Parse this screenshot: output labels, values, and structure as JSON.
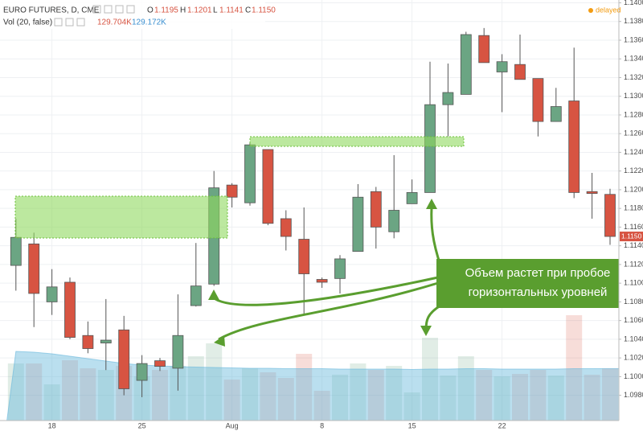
{
  "chart_data": {
    "type": "candlestick",
    "title": "EURO FUTURES, D, CME",
    "ohlc_letters": [
      "O",
      "H",
      "L",
      "C"
    ],
    "status": "delayed",
    "categories": [
      null,
      null,
      "18",
      null,
      null,
      null,
      null,
      "25",
      null,
      null,
      null,
      null,
      "Aug",
      null,
      null,
      null,
      null,
      "8",
      null,
      null,
      null,
      null,
      "15",
      null,
      null,
      null,
      null,
      "22",
      null,
      null,
      null,
      null,
      null,
      null
    ],
    "open": [
      1.1119,
      1.1142,
      1.108,
      1.1101,
      1.1044,
      1.1036,
      1.105,
      1.0996,
      1.1017,
      1.1009,
      1.1076,
      1.1099,
      1.1205,
      1.1186,
      1.1243,
      1.1169,
      1.1147,
      1.1104,
      1.1105,
      1.1134,
      1.1198,
      1.1155,
      1.1185,
      1.1197,
      1.1291,
      1.1302,
      1.1365,
      1.1326,
      1.1334,
      1.1319,
      1.1273,
      1.1295,
      1.1198,
      1.1195
    ],
    "high": [
      1.1169,
      1.1154,
      1.1115,
      1.1106,
      1.1059,
      1.1083,
      1.1065,
      1.1023,
      1.102,
      1.1088,
      1.1143,
      1.122,
      1.1207,
      1.1251,
      1.1243,
      1.1178,
      1.1181,
      1.1106,
      1.113,
      1.1206,
      1.1203,
      1.1237,
      1.1211,
      1.1337,
      1.1335,
      1.1369,
      1.1373,
      1.1345,
      1.1366,
      1.1319,
      1.1309,
      1.1352,
      1.1218,
      1.1201
    ],
    "low": [
      1.1092,
      1.1053,
      1.1066,
      1.104,
      1.1025,
      1.1007,
      1.098,
      1.0978,
      1.1006,
      1.0985,
      1.1075,
      1.1097,
      1.1181,
      1.1183,
      1.1162,
      1.1135,
      1.1066,
      1.1095,
      1.1089,
      1.1134,
      1.1137,
      1.1148,
      1.1185,
      1.1197,
      1.1257,
      1.1302,
      1.1336,
      1.1283,
      1.1318,
      1.1257,
      1.1273,
      1.1191,
      1.1169,
      1.1141
    ],
    "close": [
      1.1149,
      1.1089,
      1.1096,
      1.1042,
      1.103,
      1.1039,
      1.0987,
      1.1014,
      1.1011,
      1.1044,
      1.1097,
      1.1202,
      1.1192,
      1.1248,
      1.1164,
      1.115,
      1.111,
      1.1101,
      1.1126,
      1.1192,
      1.116,
      1.1178,
      1.1197,
      1.1291,
      1.1304,
      1.1366,
      1.1336,
      1.1337,
      1.1318,
      1.1273,
      1.1289,
      1.1197,
      1.1196,
      1.115
    ],
    "up_color": "#6ba583",
    "down_color": "#d75442",
    "last_price_label": "1.1150",
    "volume": {
      "name": "Vol (20, false)",
      "axis": "y2",
      "label": "129.704K",
      "values": [
        142,
        142,
        90,
        150,
        130,
        126,
        136,
        110,
        126,
        136,
        160,
        192,
        102,
        130,
        120,
        106,
        166,
        74,
        114,
        142,
        126,
        136,
        70,
        206,
        112,
        160,
        126,
        110,
        116,
        126,
        112,
        262,
        114,
        129.704
      ]
    },
    "volume_ma": {
      "axis": "y2",
      "label": "129.172K",
      "color": "#67b7dc",
      "values": [
        172,
        170,
        166,
        160,
        154,
        148,
        142,
        138,
        136,
        134,
        133,
        132,
        131,
        130,
        130,
        129,
        129,
        129,
        128,
        128,
        128,
        128,
        127,
        128,
        128,
        129,
        129,
        128,
        128,
        128,
        128,
        129,
        129,
        129.172
      ]
    },
    "ylim": [
      1.0953,
      1.1403
    ],
    "y2lim": [
      0,
      1046
    ],
    "yticks": [
      {
        "value": 1.14,
        "label": "1.1400"
      },
      {
        "value": 1.138,
        "label": "1.1380"
      },
      {
        "value": 1.136,
        "label": "1.1360"
      },
      {
        "value": 1.134,
        "label": "1.1340"
      },
      {
        "value": 1.132,
        "label": "1.1320"
      },
      {
        "value": 1.13,
        "label": "1.1300"
      },
      {
        "value": 1.128,
        "label": "1.1280"
      },
      {
        "value": 1.126,
        "label": "1.1260"
      },
      {
        "value": 1.124,
        "label": "1.1240"
      },
      {
        "value": 1.122,
        "label": "1.1220"
      },
      {
        "value": 1.12,
        "label": "1.1200"
      },
      {
        "value": 1.118,
        "label": "1.1180"
      },
      {
        "value": 1.116,
        "label": "1.1160"
      },
      {
        "value": 1.114,
        "label": "1.1140"
      },
      {
        "value": 1.112,
        "label": "1.1120"
      },
      {
        "value": 1.11,
        "label": "1.1100"
      },
      {
        "value": 1.108,
        "label": "1.1080"
      },
      {
        "value": 1.106,
        "label": "1.1060"
      },
      {
        "value": 1.104,
        "label": "1.1040"
      },
      {
        "value": 1.102,
        "label": "1.1020"
      },
      {
        "value": 1.1,
        "label": "1.1000"
      },
      {
        "value": 1.098,
        "label": "1.0980"
      }
    ],
    "grid": true,
    "annotation": [
      "Объем растет при пробое",
      "горизонтальных уровней"
    ]
  }
}
